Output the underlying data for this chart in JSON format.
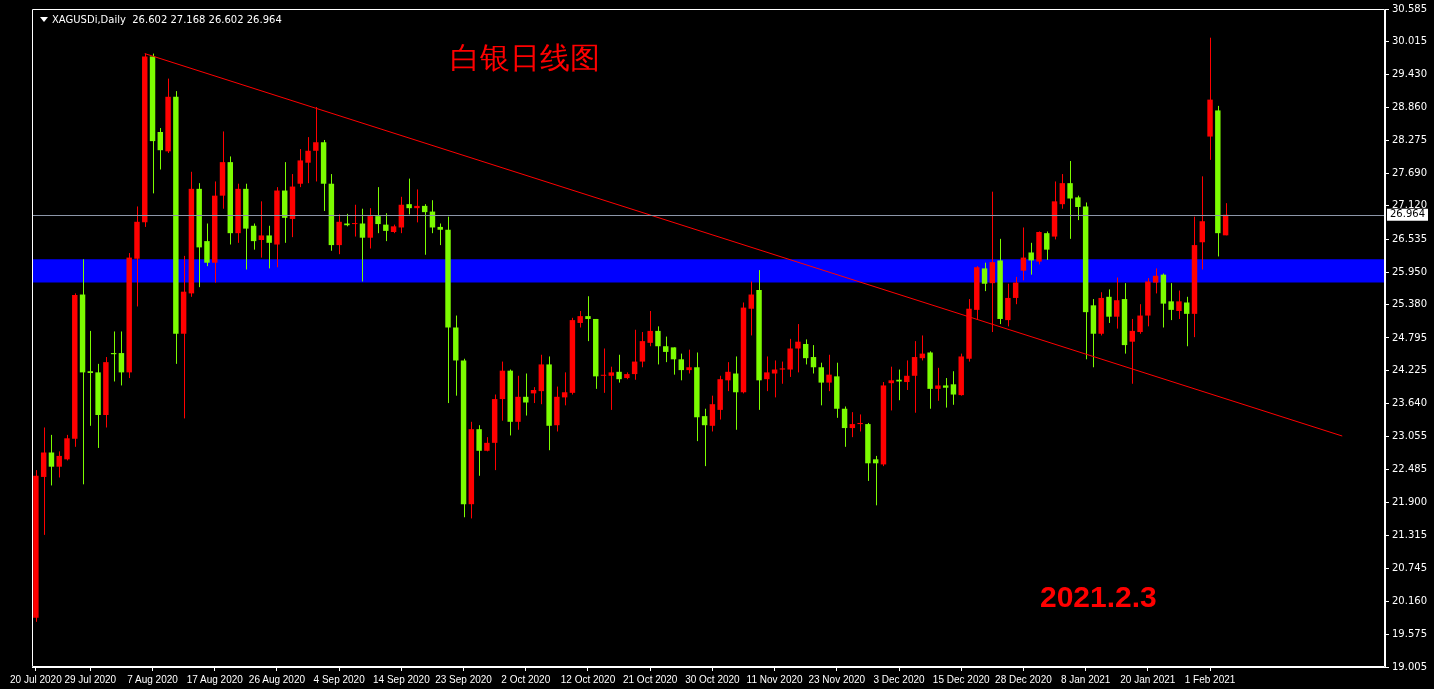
{
  "chart_data": {
    "type": "candlestick",
    "title": "白银日线图",
    "subtitle": "XAGUSDi,Daily  26.602 27.168 26.602 26.964",
    "annotations": [
      "2021.2.3"
    ],
    "categories": [
      "20 Jul 2020",
      null,
      null,
      null,
      null,
      null,
      null,
      "29 Jul 2020",
      null,
      null,
      null,
      null,
      null,
      null,
      null,
      "7 Aug 2020",
      null,
      null,
      null,
      null,
      null,
      null,
      null,
      "17 Aug 2020",
      null,
      null,
      null,
      null,
      null,
      null,
      null,
      "26 Aug 2020",
      null,
      null,
      null,
      null,
      null,
      null,
      null,
      "4 Sep 2020",
      null,
      null,
      null,
      null,
      null,
      null,
      null,
      "14 Sep 2020",
      null,
      null,
      null,
      null,
      null,
      null,
      null,
      "23 Sep 2020",
      null,
      null,
      null,
      null,
      null,
      null,
      null,
      "2 Oct 2020",
      null,
      null,
      null,
      null,
      null,
      null,
      null,
      "12 Oct 2020",
      null,
      null,
      null,
      null,
      null,
      null,
      null,
      "21 Oct 2020",
      null,
      null,
      null,
      null,
      null,
      null,
      null,
      "30 Oct 2020",
      null,
      null,
      null,
      null,
      null,
      null,
      null,
      "11 Nov 2020",
      null,
      null,
      null,
      null,
      null,
      null,
      null,
      "23 Nov 2020",
      null,
      null,
      null,
      null,
      null,
      null,
      null,
      "3 Dec 2020",
      null,
      null,
      null,
      null,
      null,
      null,
      null,
      "15 Dec 2020",
      null,
      null,
      null,
      null,
      null,
      null,
      null,
      "28 Dec 2020",
      null,
      null,
      null,
      null,
      null,
      null,
      null,
      "8 Jan 2021",
      null,
      null,
      null,
      null,
      null,
      null,
      null,
      "20 Jan 2021",
      null,
      null,
      null,
      null,
      null,
      null,
      null,
      "1 Feb 2021",
      null,
      null,
      null,
      null,
      null,
      null,
      null,
      null,
      null,
      null,
      null,
      null,
      null,
      null,
      null,
      null,
      null,
      null,
      null,
      null,
      null,
      null
    ],
    "ohlc": [
      [
        19.87,
        22.47,
        19.8,
        22.37
      ],
      [
        22.35,
        23.22,
        21.33,
        22.78
      ],
      [
        22.78,
        23.09,
        22.2,
        22.53
      ],
      [
        22.53,
        22.8,
        22.34,
        22.72
      ],
      [
        22.66,
        23.09,
        22.64,
        23.03
      ],
      [
        23.02,
        25.58,
        22.88,
        25.55
      ],
      [
        25.56,
        26.18,
        22.22,
        24.19
      ],
      [
        24.21,
        24.92,
        23.25,
        24.18
      ],
      [
        24.19,
        24.34,
        22.86,
        23.44
      ],
      [
        23.44,
        24.46,
        23.22,
        24.37
      ],
      [
        24.53,
        24.91,
        24.03,
        24.51
      ],
      [
        24.53,
        24.91,
        23.96,
        24.19
      ],
      [
        24.19,
        26.29,
        24.09,
        26.21
      ],
      [
        26.19,
        27.11,
        25.35,
        26.84
      ],
      [
        26.83,
        29.8,
        26.75,
        29.75
      ],
      [
        29.75,
        29.8,
        27.34,
        28.26
      ],
      [
        28.42,
        28.49,
        27.76,
        28.1
      ],
      [
        28.08,
        29.36,
        28.05,
        29.04
      ],
      [
        29.04,
        29.14,
        24.34,
        24.87
      ],
      [
        24.87,
        26.24,
        23.38,
        25.61
      ],
      [
        25.58,
        27.72,
        25.52,
        27.42
      ],
      [
        27.42,
        27.52,
        25.69,
        26.39
      ],
      [
        26.5,
        26.81,
        26.06,
        26.12
      ],
      [
        26.12,
        27.55,
        25.77,
        27.3
      ],
      [
        27.3,
        28.43,
        27.07,
        27.89
      ],
      [
        27.89,
        27.99,
        26.44,
        26.64
      ],
      [
        26.64,
        27.51,
        26.47,
        27.42
      ],
      [
        27.42,
        27.51,
        26.0,
        26.72
      ],
      [
        26.77,
        26.81,
        26.35,
        26.5
      ],
      [
        26.52,
        27.2,
        26.21,
        26.6
      ],
      [
        26.6,
        26.77,
        26.02,
        26.47
      ],
      [
        26.44,
        27.45,
        26.04,
        27.39
      ],
      [
        27.39,
        27.89,
        26.47,
        26.91
      ],
      [
        26.89,
        27.68,
        26.57,
        27.46
      ],
      [
        27.51,
        28.12,
        27.45,
        27.92
      ],
      [
        27.88,
        28.33,
        27.52,
        28.09
      ],
      [
        28.09,
        28.86,
        27.55,
        28.24
      ],
      [
        28.24,
        28.28,
        27.03,
        27.51
      ],
      [
        27.51,
        27.68,
        26.33,
        26.43
      ],
      [
        26.43,
        26.97,
        26.27,
        26.84
      ],
      [
        26.81,
        26.98,
        26.76,
        26.78
      ],
      [
        26.8,
        27.14,
        26.58,
        26.81
      ],
      [
        26.81,
        27.07,
        25.79,
        26.56
      ],
      [
        26.56,
        27.08,
        26.37,
        26.94
      ],
      [
        26.94,
        27.45,
        26.64,
        26.8
      ],
      [
        26.79,
        26.99,
        26.5,
        26.68
      ],
      [
        26.66,
        26.79,
        26.64,
        26.76
      ],
      [
        26.74,
        27.28,
        26.64,
        27.14
      ],
      [
        27.15,
        27.6,
        26.97,
        27.08
      ],
      [
        27.08,
        27.41,
        26.83,
        27.12
      ],
      [
        27.12,
        27.15,
        26.26,
        27.01
      ],
      [
        27.02,
        27.22,
        26.64,
        26.74
      ],
      [
        26.75,
        26.81,
        26.43,
        26.7
      ],
      [
        26.7,
        26.93,
        23.65,
        24.98
      ],
      [
        24.98,
        25.19,
        23.78,
        24.4
      ],
      [
        24.4,
        24.43,
        21.64,
        21.87
      ],
      [
        21.87,
        23.32,
        21.62,
        23.19
      ],
      [
        23.19,
        23.26,
        22.37,
        22.81
      ],
      [
        22.81,
        23.05,
        22.8,
        22.95
      ],
      [
        22.95,
        23.8,
        22.47,
        23.72
      ],
      [
        23.72,
        24.38,
        23.34,
        24.22
      ],
      [
        24.22,
        24.24,
        23.08,
        23.32
      ],
      [
        23.32,
        24.13,
        23.18,
        23.76
      ],
      [
        23.76,
        24.17,
        23.43,
        23.66
      ],
      [
        23.82,
        23.93,
        23.65,
        23.88
      ],
      [
        23.86,
        24.5,
        23.63,
        24.33
      ],
      [
        24.33,
        24.47,
        22.82,
        23.25
      ],
      [
        23.26,
        23.94,
        23.15,
        23.76
      ],
      [
        23.75,
        24.19,
        23.61,
        23.84
      ],
      [
        23.83,
        25.15,
        23.8,
        25.11
      ],
      [
        25.06,
        25.27,
        24.98,
        25.18
      ],
      [
        25.18,
        25.53,
        24.74,
        25.13
      ],
      [
        25.13,
        25.13,
        23.9,
        24.12
      ],
      [
        24.13,
        24.61,
        23.83,
        24.14
      ],
      [
        24.13,
        24.29,
        23.53,
        24.19
      ],
      [
        24.2,
        24.5,
        24.01,
        24.07
      ],
      [
        24.09,
        24.19,
        24.07,
        24.16
      ],
      [
        24.16,
        24.94,
        24.06,
        24.38
      ],
      [
        24.38,
        24.9,
        24.28,
        24.74
      ],
      [
        24.71,
        25.27,
        24.65,
        24.92
      ],
      [
        24.92,
        25.0,
        24.33,
        24.65
      ],
      [
        24.65,
        24.82,
        24.37,
        24.55
      ],
      [
        24.63,
        24.63,
        24.15,
        24.42
      ],
      [
        24.42,
        24.52,
        24.05,
        24.23
      ],
      [
        24.23,
        24.59,
        24.17,
        24.28
      ],
      [
        24.28,
        24.54,
        22.98,
        23.4
      ],
      [
        23.42,
        23.55,
        22.54,
        23.26
      ],
      [
        23.25,
        23.78,
        23.15,
        23.63
      ],
      [
        23.53,
        24.13,
        23.36,
        24.07
      ],
      [
        24.05,
        24.37,
        23.86,
        24.2
      ],
      [
        24.17,
        24.47,
        23.18,
        23.84
      ],
      [
        23.84,
        25.42,
        23.82,
        25.33
      ],
      [
        25.31,
        25.79,
        24.84,
        25.56
      ],
      [
        25.64,
        25.99,
        23.53,
        24.05
      ],
      [
        24.07,
        24.47,
        23.86,
        24.19
      ],
      [
        24.17,
        24.4,
        23.75,
        24.24
      ],
      [
        24.24,
        24.38,
        23.99,
        24.26
      ],
      [
        24.24,
        24.78,
        24.11,
        24.61
      ],
      [
        24.61,
        25.04,
        24.19,
        24.73
      ],
      [
        24.69,
        24.77,
        24.33,
        24.44
      ],
      [
        24.46,
        24.67,
        24.17,
        24.28
      ],
      [
        24.28,
        24.36,
        23.61,
        24.01
      ],
      [
        24.01,
        24.5,
        23.86,
        24.15
      ],
      [
        24.12,
        24.36,
        23.39,
        23.55
      ],
      [
        23.55,
        23.59,
        22.88,
        23.21
      ],
      [
        23.21,
        23.49,
        23.05,
        23.28
      ],
      [
        23.28,
        23.45,
        23.15,
        23.3
      ],
      [
        23.28,
        23.3,
        22.28,
        22.59
      ],
      [
        22.66,
        22.72,
        21.85,
        22.59
      ],
      [
        22.57,
        24.02,
        22.54,
        23.96
      ],
      [
        24.0,
        24.29,
        23.52,
        24.05
      ],
      [
        24.06,
        24.24,
        23.7,
        24.03
      ],
      [
        24.02,
        24.4,
        23.88,
        24.13
      ],
      [
        24.13,
        24.74,
        23.48,
        24.46
      ],
      [
        24.44,
        24.84,
        24.4,
        24.52
      ],
      [
        24.54,
        24.56,
        23.55,
        23.9
      ],
      [
        23.9,
        24.27,
        23.69,
        23.96
      ],
      [
        23.96,
        24.09,
        23.57,
        23.92
      ],
      [
        23.98,
        24.21,
        23.62,
        23.8
      ],
      [
        23.79,
        24.52,
        23.78,
        24.47
      ],
      [
        24.43,
        25.48,
        24.38,
        25.31
      ],
      [
        25.29,
        26.06,
        25.13,
        26.04
      ],
      [
        26.02,
        26.12,
        25.62,
        25.75
      ],
      [
        25.76,
        27.37,
        24.9,
        26.13
      ],
      [
        26.16,
        26.54,
        25.04,
        25.13
      ],
      [
        25.11,
        25.75,
        25.0,
        25.5
      ],
      [
        25.5,
        25.87,
        25.39,
        25.77
      ],
      [
        25.98,
        26.74,
        25.81,
        26.21
      ],
      [
        26.3,
        26.47,
        25.91,
        26.16
      ],
      [
        26.14,
        26.67,
        26.09,
        26.66
      ],
      [
        26.64,
        26.67,
        26.17,
        26.35
      ],
      [
        26.58,
        27.55,
        26.53,
        27.2
      ],
      [
        27.15,
        27.68,
        27.07,
        27.52
      ],
      [
        27.52,
        27.91,
        26.54,
        27.25
      ],
      [
        27.27,
        27.3,
        26.87,
        27.1
      ],
      [
        27.11,
        27.18,
        24.42,
        25.25
      ],
      [
        25.37,
        25.48,
        24.28,
        24.87
      ],
      [
        24.87,
        25.6,
        24.84,
        25.5
      ],
      [
        25.52,
        25.65,
        25.06,
        25.17
      ],
      [
        25.17,
        25.86,
        24.96,
        25.46
      ],
      [
        25.48,
        25.76,
        24.52,
        24.67
      ],
      [
        24.73,
        25.13,
        23.99,
        24.92
      ],
      [
        24.9,
        25.39,
        24.87,
        25.19
      ],
      [
        25.19,
        25.85,
        25.0,
        25.79
      ],
      [
        25.77,
        26.02,
        25.58,
        25.89
      ],
      [
        25.91,
        25.93,
        24.98,
        25.4
      ],
      [
        25.44,
        25.76,
        25.11,
        25.29
      ],
      [
        25.27,
        25.63,
        25.13,
        25.44
      ],
      [
        25.42,
        25.52,
        24.65,
        25.22
      ],
      [
        25.22,
        26.93,
        24.81,
        26.43
      ],
      [
        26.48,
        27.64,
        26.0,
        26.85
      ],
      [
        28.34,
        30.08,
        27.93,
        28.99
      ],
      [
        28.8,
        28.88,
        26.23,
        26.64
      ],
      [
        26.602,
        27.168,
        26.602,
        26.964
      ],
      null,
      null,
      null,
      null,
      null,
      null,
      null,
      null,
      null,
      null,
      null,
      null,
      null,
      null,
      null,
      null,
      null,
      null,
      null,
      null
    ],
    "colors": [
      "#ff0000",
      "#ff0000",
      "#7cfc00",
      "#ff0000",
      "#ff0000",
      "#ff0000",
      "#7cfc00",
      "#7cfc00",
      "#7cfc00",
      "#ff0000",
      "#7cfc00",
      "#7cfc00",
      "#ff0000",
      "#ff0000",
      "#ff0000",
      "#7cfc00",
      "#7cfc00",
      "#ff0000",
      "#7cfc00",
      "#ff0000",
      "#ff0000",
      "#7cfc00",
      "#7cfc00",
      "#ff0000",
      "#ff0000",
      "#7cfc00",
      "#ff0000",
      "#7cfc00",
      "#7cfc00",
      "#ff0000",
      "#7cfc00",
      "#ff0000",
      "#7cfc00",
      "#ff0000",
      "#ff0000",
      "#ff0000",
      "#ff0000",
      "#7cfc00",
      "#7cfc00",
      "#ff0000",
      "#7cfc00",
      "#ff0000",
      "#7cfc00",
      "#ff0000",
      "#7cfc00",
      "#7cfc00",
      "#ff0000",
      "#ff0000",
      "#7cfc00",
      "#ff0000",
      "#7cfc00",
      "#7cfc00",
      "#7cfc00",
      "#7cfc00",
      "#7cfc00",
      "#7cfc00",
      "#ff0000",
      "#7cfc00",
      "#ff0000",
      "#ff0000",
      "#ff0000",
      "#7cfc00",
      "#ff0000",
      "#7cfc00",
      "#ff0000",
      "#ff0000",
      "#7cfc00",
      "#ff0000",
      "#ff0000",
      "#ff0000",
      "#ff0000",
      "#7cfc00",
      "#7cfc00",
      "#ff0000",
      "#ff0000",
      "#7cfc00",
      "#ff0000",
      "#ff0000",
      "#ff0000",
      "#ff0000",
      "#7cfc00",
      "#7cfc00",
      "#7cfc00",
      "#7cfc00",
      "#ff0000",
      "#7cfc00",
      "#7cfc00",
      "#ff0000",
      "#ff0000",
      "#ff0000",
      "#7cfc00",
      "#ff0000",
      "#ff0000",
      "#7cfc00",
      "#ff0000",
      "#ff0000",
      "#ff0000",
      "#ff0000",
      "#ff0000",
      "#7cfc00",
      "#7cfc00",
      "#7cfc00",
      "#ff0000",
      "#7cfc00",
      "#7cfc00",
      "#ff0000",
      "#ff0000",
      "#7cfc00",
      "#7cfc00",
      "#ff0000",
      "#ff0000",
      "#7cfc00",
      "#ff0000",
      "#ff0000",
      "#ff0000",
      "#7cfc00",
      "#ff0000",
      "#7cfc00",
      "#7cfc00",
      "#ff0000",
      "#ff0000",
      "#ff0000",
      "#7cfc00",
      "#ff0000",
      "#7cfc00",
      "#ff0000",
      "#ff0000",
      "#ff0000",
      "#7cfc00",
      "#ff0000",
      "#7cfc00",
      "#ff0000",
      "#ff0000",
      "#7cfc00",
      "#7cfc00",
      "#7cfc00",
      "#7cfc00",
      "#ff0000",
      "#7cfc00",
      "#ff0000",
      "#7cfc00",
      "#ff0000",
      "#ff0000",
      "#ff0000",
      "#ff0000",
      "#7cfc00",
      "#7cfc00",
      "#ff0000",
      "#7cfc00",
      "#ff0000",
      "#ff0000",
      "#ff0000",
      "#7cfc00",
      "#ff0000",
      null,
      null,
      null,
      null,
      null,
      null,
      null,
      null,
      null,
      null,
      null,
      null,
      null,
      null,
      null,
      null,
      null,
      null,
      null,
      null
    ],
    "series": [
      {
        "type": "line",
        "color": "#ff0000",
        "values": [
          null,
          null,
          null,
          null,
          null,
          null,
          null,
          null,
          null,
          null,
          null,
          null,
          null,
          null,
          29.8,
          null,
          null,
          null,
          null,
          null,
          null,
          null,
          null,
          null,
          null,
          null,
          null,
          null,
          null,
          null,
          null,
          null,
          null,
          null,
          null,
          null,
          null,
          null,
          null,
          null,
          null,
          null,
          null,
          null,
          null,
          null,
          null,
          null,
          null,
          null,
          null,
          null,
          null,
          null,
          null,
          null,
          null,
          null,
          null,
          null,
          null,
          null,
          null,
          null,
          null,
          null,
          null,
          null,
          null,
          null,
          null,
          null,
          null,
          null,
          null,
          null,
          null,
          null,
          null,
          null,
          null,
          null,
          null,
          null,
          null,
          null,
          null,
          null,
          null,
          null,
          null,
          null,
          null,
          null,
          null,
          null,
          null,
          null,
          null,
          null,
          null,
          null,
          null,
          null,
          null,
          null,
          null,
          null,
          null,
          null,
          null,
          null,
          null,
          null,
          null,
          null,
          null,
          null,
          null,
          null,
          null,
          null,
          null,
          null,
          null,
          null,
          null,
          null,
          null,
          null,
          null,
          null,
          null,
          null,
          null,
          null,
          null,
          null,
          null,
          null,
          null,
          null,
          null,
          null,
          null,
          null,
          null,
          null,
          null,
          null,
          null,
          null,
          null,
          null,
          null,
          null,
          null,
          null,
          null,
          null,
          null,
          null,
          null,
          null,
          null,
          null,
          null,
          null,
          23.07,
          null,
          null,
          null,
          null,
          null
        ]
      }
    ],
    "bands": [
      {
        "axis": "y",
        "from": 25.77,
        "to": 26.18,
        "color": "#0000ff"
      }
    ],
    "ref_lines": [
      {
        "axis": "y",
        "value": 26.964,
        "label": "26.964",
        "color": "#8c96a8"
      }
    ],
    "ylim": [
      19.005,
      30.585
    ],
    "yticks": [
      19.005,
      {
        "value": 19.575,
        "label": "19.575"
      },
      {
        "value": 20.16,
        "label": "20.160"
      },
      20.745,
      21.315,
      {
        "value": 21.9,
        "label": "21.900"
      },
      22.485,
      23.055,
      {
        "value": 23.64,
        "label": "23.640"
      },
      24.225,
      24.795,
      {
        "value": 25.38,
        "label": "25.380"
      },
      {
        "value": 25.95,
        "label": "25.950"
      },
      26.535,
      {
        "value": 27.12,
        "label": "27.120"
      },
      {
        "value": 27.69,
        "label": "27.690"
      },
      28.275,
      {
        "value": 28.86,
        "label": "28.860"
      },
      {
        "value": 29.43,
        "label": "29.430"
      },
      30.015,
      30.585
    ]
  }
}
